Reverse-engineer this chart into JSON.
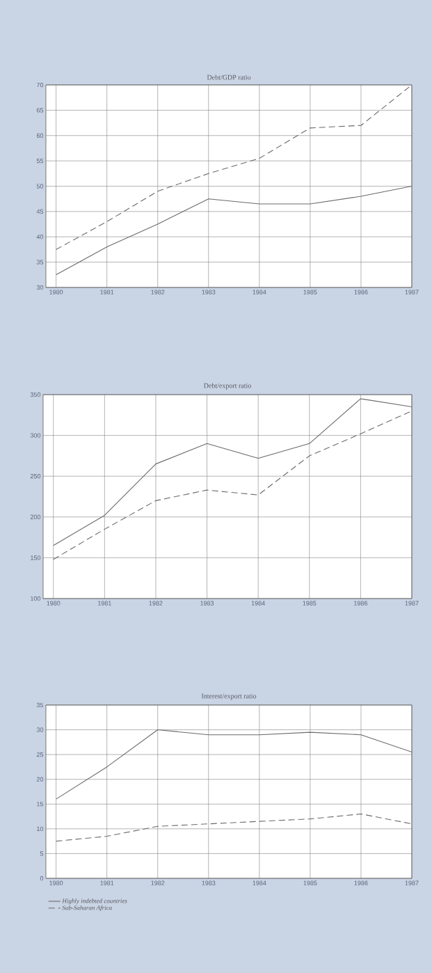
{
  "chart_data": [
    {
      "type": "line",
      "title": "Debt/GDP ratio",
      "categories": [
        "1980",
        "1981",
        "1982",
        "1983",
        "1984",
        "1985",
        "1986",
        "1987"
      ],
      "ylim": [
        30,
        70
      ],
      "yticks": [
        30,
        35,
        40,
        45,
        50,
        55,
        60,
        65,
        70
      ],
      "grid": true,
      "legend": false,
      "series": [
        {
          "color": "#6a6a6a",
          "line_style": "solid",
          "values": [
            32.5,
            38,
            42.5,
            47.5,
            46.5,
            46.5,
            48,
            50
          ]
        },
        {
          "color": "#6a6a6a",
          "line_style": "dashed",
          "values": [
            37.5,
            43,
            49,
            52.5,
            55.5,
            61.5,
            62,
            70
          ]
        }
      ]
    },
    {
      "type": "line",
      "title": "Debt/export ratio",
      "categories": [
        "1980",
        "1981",
        "1982",
        "1983",
        "1984",
        "1985",
        "1986",
        "1987"
      ],
      "ylim": [
        100,
        350
      ],
      "yticks": [
        100,
        150,
        200,
        250,
        300,
        350
      ],
      "grid": true,
      "legend": false,
      "series": [
        {
          "color": "#6a6a6a",
          "line_style": "solid",
          "values": [
            165,
            202,
            265,
            290,
            272,
            290,
            345,
            335
          ]
        },
        {
          "color": "#6a6a6a",
          "line_style": "dashed",
          "values": [
            148,
            185,
            220,
            233,
            227,
            275,
            302,
            330
          ]
        }
      ]
    },
    {
      "type": "line",
      "title": "Interest/export ratio",
      "categories": [
        "1980",
        "1981",
        "1982",
        "1983",
        "1984",
        "1985",
        "1986",
        "1987"
      ],
      "ylim": [
        0,
        35
      ],
      "yticks": [
        0,
        5,
        10,
        15,
        20,
        25,
        30,
        35
      ],
      "grid": true,
      "legend": "bottom left",
      "series": [
        {
          "name": "Highly indebted countries",
          "color": "#6a6a6a",
          "line_style": "solid",
          "values": [
            16,
            22.5,
            30,
            29,
            29,
            29.5,
            29,
            25.5
          ]
        },
        {
          "name": "Sub-Saharan Africa",
          "color": "#6a6a6a",
          "line_style": "dashed",
          "values": [
            7.5,
            8.5,
            10.5,
            11,
            11.5,
            12,
            13,
            11
          ]
        }
      ]
    }
  ]
}
